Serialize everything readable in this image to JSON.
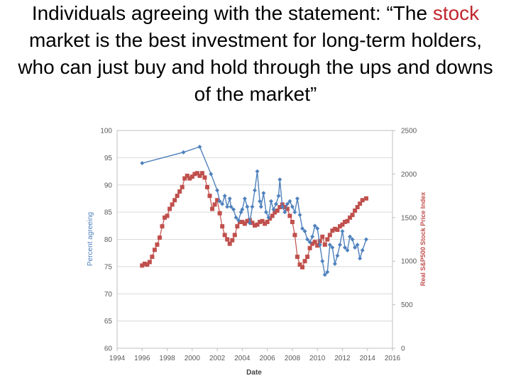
{
  "slide": {
    "title_part1": "Individuals agreeing with the statement: “The ",
    "title_highlight": "stock",
    "title_part2": " market is the best investment for long-term holders, who can just buy and hold through the ups and downs of the market”"
  },
  "colors": {
    "agreeing": "#4f81bd",
    "price": "#c0504d",
    "grid": "#d9d9d9",
    "axis_text": "#595959",
    "title_highlight": "#c0262d"
  },
  "chart_data": {
    "type": "line",
    "xlabel": "Date",
    "ylabel_left": "Percent agreeing",
    "ylabel_right": "Real S&P500 Stock Price Index",
    "x_range": [
      1994,
      2016
    ],
    "x_ticks": [
      "1994",
      "1996",
      "1998",
      "2000",
      "2002",
      "2004",
      "2006",
      "2008",
      "2010",
      "2012",
      "2014",
      "2016"
    ],
    "y_left_range": [
      60,
      100
    ],
    "y_left_ticks": [
      "60",
      "65",
      "70",
      "75",
      "80",
      "85",
      "90",
      "95",
      "100"
    ],
    "y_right_range": [
      0,
      2500
    ],
    "y_right_ticks": [
      "0",
      "500",
      "1000",
      "1500",
      "2000",
      "2500"
    ],
    "grid": "horizontal",
    "series": [
      {
        "name": "Percent agreeing",
        "axis": "left",
        "marker": "diamond",
        "x": [
          1996.0,
          1999.3,
          2000.6,
          2001.5,
          2002.0,
          2002.2,
          2002.4,
          2002.6,
          2002.8,
          2003.0,
          2003.1,
          2003.3,
          2003.5,
          2003.7,
          2003.9,
          2004.0,
          2004.2,
          2004.4,
          2004.6,
          2004.8,
          2005.0,
          2005.2,
          2005.4,
          2005.5,
          2005.7,
          2005.9,
          2006.1,
          2006.3,
          2006.5,
          2006.7,
          2006.9,
          2007.0,
          2007.2,
          2007.4,
          2007.6,
          2007.8,
          2008.0,
          2008.2,
          2008.4,
          2008.6,
          2008.8,
          2009.0,
          2009.2,
          2009.4,
          2009.6,
          2009.8,
          2010.0,
          2010.2,
          2010.4,
          2010.6,
          2010.8,
          2011.0,
          2011.2,
          2011.4,
          2011.6,
          2011.8,
          2012.0,
          2012.2,
          2012.4,
          2012.6,
          2012.8,
          2013.0,
          2013.2,
          2013.4,
          2013.6,
          2013.9
        ],
        "values": [
          94.0,
          96.0,
          97.0,
          92.0,
          89.0,
          87.0,
          86.5,
          88.0,
          86.0,
          87.5,
          86.0,
          85.5,
          84.0,
          83.5,
          85.0,
          85.5,
          87.5,
          86.0,
          83.0,
          86.0,
          89.0,
          92.5,
          87.0,
          86.0,
          88.5,
          85.0,
          84.0,
          87.0,
          85.5,
          86.5,
          88.0,
          91.0,
          86.0,
          85.0,
          86.5,
          87.0,
          86.0,
          85.0,
          87.5,
          84.5,
          82.0,
          81.5,
          80.0,
          79.5,
          80.5,
          82.5,
          82.0,
          79.0,
          76.0,
          73.5,
          74.0,
          79.0,
          78.5,
          75.5,
          77.0,
          79.0,
          81.5,
          78.5,
          78.0,
          80.5,
          80.0,
          78.5,
          79.0,
          76.5,
          78.0,
          80.0
        ]
      },
      {
        "name": "Real S&P500 Stock Price Index",
        "axis": "right",
        "marker": "square",
        "x": [
          1996.0,
          1996.2,
          1996.4,
          1996.6,
          1996.8,
          1997.0,
          1997.2,
          1997.4,
          1997.6,
          1997.8,
          1998.0,
          1998.2,
          1998.4,
          1998.6,
          1998.8,
          1999.0,
          1999.2,
          1999.4,
          1999.6,
          1999.8,
          2000.0,
          2000.2,
          2000.4,
          2000.6,
          2000.8,
          2001.0,
          2001.2,
          2001.4,
          2001.6,
          2001.8,
          2002.0,
          2002.2,
          2002.4,
          2002.6,
          2002.8,
          2003.0,
          2003.2,
          2003.4,
          2003.6,
          2003.8,
          2004.0,
          2004.2,
          2004.4,
          2004.6,
          2004.8,
          2005.0,
          2005.2,
          2005.4,
          2005.6,
          2005.8,
          2006.0,
          2006.2,
          2006.4,
          2006.6,
          2006.8,
          2007.0,
          2007.2,
          2007.4,
          2007.6,
          2007.8,
          2008.0,
          2008.2,
          2008.4,
          2008.6,
          2008.8,
          2009.0,
          2009.2,
          2009.4,
          2009.6,
          2009.8,
          2010.0,
          2010.2,
          2010.4,
          2010.6,
          2010.8,
          2011.0,
          2011.2,
          2011.4,
          2011.6,
          2011.8,
          2012.0,
          2012.2,
          2012.4,
          2012.6,
          2012.8,
          2013.0,
          2013.2,
          2013.4,
          2013.6,
          2013.9
        ],
        "values": [
          950,
          970,
          960,
          990,
          1050,
          1130,
          1190,
          1270,
          1400,
          1500,
          1520,
          1600,
          1650,
          1700,
          1750,
          1800,
          1850,
          1950,
          1980,
          1950,
          1970,
          2000,
          2010,
          1980,
          2010,
          1960,
          1850,
          1750,
          1600,
          1650,
          1700,
          1550,
          1400,
          1300,
          1250,
          1200,
          1240,
          1300,
          1400,
          1450,
          1450,
          1430,
          1460,
          1470,
          1440,
          1410,
          1420,
          1450,
          1460,
          1430,
          1450,
          1490,
          1520,
          1560,
          1580,
          1620,
          1650,
          1620,
          1600,
          1520,
          1450,
          1300,
          1050,
          960,
          930,
          1000,
          1050,
          1150,
          1200,
          1220,
          1180,
          1230,
          1280,
          1190,
          1250,
          1300,
          1350,
          1370,
          1360,
          1400,
          1420,
          1450,
          1460,
          1500,
          1530,
          1580,
          1620,
          1660,
          1700,
          1720
        ]
      }
    ]
  }
}
